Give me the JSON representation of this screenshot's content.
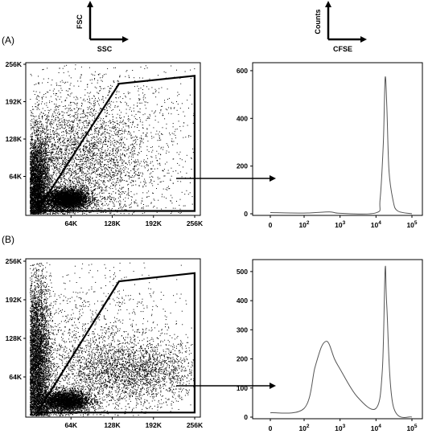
{
  "panels": [
    {
      "label": "(A)",
      "scatter": {
        "xaxis_title": "SSC",
        "yaxis_title": "FSC",
        "xticks": [
          "64K",
          "128K",
          "192K",
          "256K"
        ],
        "yticks": [
          "64K",
          "128K",
          "192K",
          "256K"
        ]
      },
      "histogram": {
        "xaxis_title": "CFSE",
        "yaxis_title": "Counts",
        "xticks": [
          "0",
          "10^2",
          "10^3",
          "10^4",
          "10^5"
        ],
        "yticks": [
          "0",
          "200",
          "400",
          "600"
        ]
      }
    },
    {
      "label": "(B)",
      "scatter": {
        "xaxis_title": "SSC",
        "yaxis_title": "FSC",
        "xticks": [
          "64K",
          "128K",
          "192K",
          "256K"
        ],
        "yticks": [
          "64K",
          "128K",
          "192K",
          "256K"
        ]
      },
      "histogram": {
        "xaxis_title": "CFSE",
        "yaxis_title": "Counts",
        "xticks": [
          "0",
          "10^2",
          "10^3",
          "10^4",
          "10^5"
        ],
        "yticks": [
          "0",
          "100",
          "200",
          "300",
          "400",
          "500"
        ]
      }
    }
  ],
  "chart_data": [
    {
      "type": "scatter",
      "panel": "(A)",
      "xlabel": "SSC",
      "ylabel": "FSC",
      "xlim": [
        0,
        262144
      ],
      "ylim": [
        0,
        262144
      ],
      "gate_polygon": [
        [
          12000,
          5000
        ],
        [
          142000,
          228000
        ],
        [
          262000,
          242000
        ],
        [
          262000,
          5000
        ]
      ],
      "populations": [
        {
          "name": "",
          "cx": 58000,
          "cy": 26000,
          "sx": 17000,
          "sy": 9000,
          "n": 4200
        },
        {
          "name": "",
          "cx": 12000,
          "cy": 45000,
          "sx": 9000,
          "sy": 45000,
          "n": 3500
        },
        {
          "name": "",
          "cx": 70000,
          "cy": 90000,
          "sx": 55000,
          "sy": 55000,
          "n": 3000
        },
        {
          "name": "",
          "cx": 130000,
          "cy": 130000,
          "sx": 85000,
          "sy": 80000,
          "n": 1500
        }
      ]
    },
    {
      "type": "line",
      "panel": "(A)",
      "xlabel": "CFSE",
      "ylabel": "Counts",
      "xscale": "log",
      "ylim": [
        0,
        620
      ],
      "x": [
        "0",
        "10^2",
        "5x10^2",
        "10^3",
        "10^4",
        "1.3x10^4",
        "1.6x10^4",
        "1.8x10^4",
        "2x10^4",
        "2.3x10^4",
        "3x10^4",
        "4x10^4",
        "10^5"
      ],
      "y": [
        5,
        3,
        8,
        2,
        4,
        60,
        300,
        570,
        450,
        180,
        55,
        12,
        0
      ]
    },
    {
      "type": "scatter",
      "panel": "(B)",
      "xlabel": "SSC",
      "ylabel": "FSC",
      "xlim": [
        0,
        262144
      ],
      "ylim": [
        0,
        262144
      ],
      "gate_polygon": [
        [
          12000,
          5000
        ],
        [
          142000,
          228000
        ],
        [
          262000,
          242000
        ],
        [
          262000,
          5000
        ]
      ],
      "populations": [
        {
          "name": "",
          "cx": 55000,
          "cy": 25000,
          "sx": 20000,
          "sy": 9000,
          "n": 3500
        },
        {
          "name": "",
          "cx": 12000,
          "cy": 90000,
          "sx": 10000,
          "sy": 70000,
          "n": 4500
        },
        {
          "name": "",
          "cx": 160000,
          "cy": 75000,
          "sx": 60000,
          "sy": 26000,
          "n": 2600
        },
        {
          "name": "",
          "cx": 90000,
          "cy": 115000,
          "sx": 75000,
          "sy": 70000,
          "n": 1500
        }
      ]
    },
    {
      "type": "line",
      "panel": "(B)",
      "xlabel": "CFSE",
      "ylabel": "Counts",
      "xscale": "log",
      "ylim": [
        0,
        530
      ],
      "x": [
        "0",
        "10^2",
        "2x10^2",
        "3x10^2",
        "4x10^2",
        "5x10^2",
        "7x10^2",
        "10^3",
        "3x10^3",
        "10^4",
        "1.5x10^4",
        "1.8x10^4",
        "2x10^4",
        "3x10^4",
        "10^5"
      ],
      "y": [
        15,
        30,
        170,
        240,
        260,
        250,
        200,
        165,
        70,
        30,
        160,
        510,
        380,
        40,
        0
      ]
    }
  ]
}
